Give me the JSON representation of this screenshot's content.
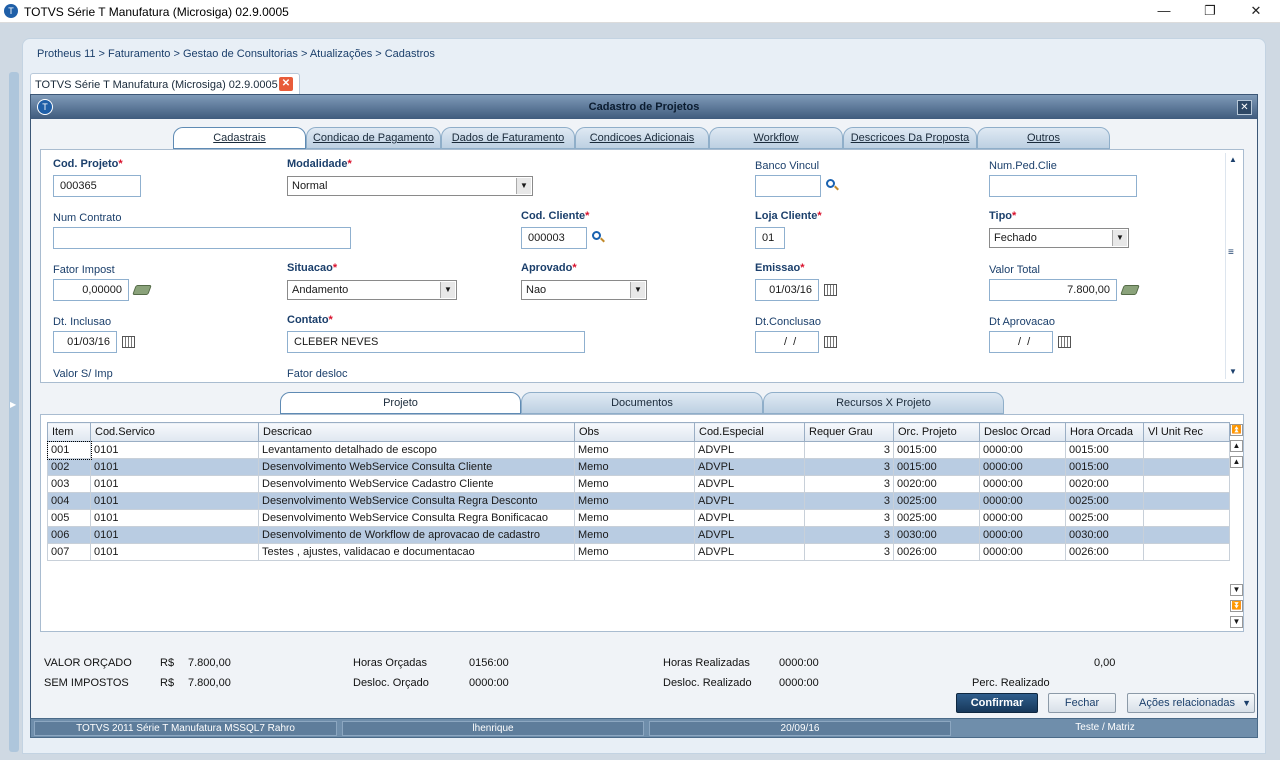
{
  "window": {
    "title": "TOTVS Série T Manufatura (Microsiga) 02.9.0005",
    "minimize": "—",
    "maximize": "❐",
    "close": "✕"
  },
  "breadcrumb": "Protheus 11 > Faturamento > Gestao de Consultorias > Atualizações > Cadastros",
  "doc_tab": {
    "label": "TOTVS Série T Manufatura (Microsiga) 02.9.0005",
    "close": "✕"
  },
  "dialog": {
    "title": "Cadastro de Projetos",
    "close": "✕"
  },
  "tabs": [
    "Cadastrais",
    "Condicao de Pagamento",
    "Dados de Faturamento",
    "Condicoes Adicionais",
    "Workflow",
    "Descricoes Da Proposta",
    "Outros"
  ],
  "form": {
    "cod_projeto": {
      "label": "Cod. Projeto",
      "value": "000365"
    },
    "modalidade": {
      "label": "Modalidade",
      "value": "Normal"
    },
    "banco_vincul": {
      "label": "Banco Vincul",
      "value": ""
    },
    "num_ped_clie": {
      "label": "Num.Ped.Clie",
      "value": ""
    },
    "num_contrato": {
      "label": "Num Contrato",
      "value": ""
    },
    "cod_cliente": {
      "label": "Cod. Cliente",
      "value": "000003"
    },
    "loja_cliente": {
      "label": "Loja Cliente",
      "value": "01"
    },
    "tipo": {
      "label": "Tipo",
      "value": "Fechado"
    },
    "fator_impost": {
      "label": "Fator Impost",
      "value": "0,00000"
    },
    "situacao": {
      "label": "Situacao",
      "value": "Andamento"
    },
    "aprovado": {
      "label": "Aprovado",
      "value": "Nao"
    },
    "emissao": {
      "label": "Emissao",
      "value": "01/03/16"
    },
    "valor_total": {
      "label": "Valor Total",
      "value": "7.800,00"
    },
    "dt_inclusao": {
      "label": "Dt. Inclusao",
      "value": "01/03/16"
    },
    "contato": {
      "label": "Contato",
      "value": "CLEBER NEVES"
    },
    "dt_conclusao": {
      "label": "Dt.Conclusao",
      "value": "  /  /"
    },
    "dt_aprovacao": {
      "label": "Dt Aprovacao",
      "value": "  /  /"
    },
    "valor_s_imp": {
      "label": "Valor S/ Imp"
    },
    "fator_desloc": {
      "label": "Fator desloc"
    },
    "required_mark": "*"
  },
  "sub_tabs": [
    "Projeto",
    "Documentos",
    "Recursos X Projeto"
  ],
  "grid": {
    "columns": [
      "Item",
      "Cod.Servico",
      "Descricao",
      "Obs",
      "Cod.Especial",
      "Requer Grau",
      "Orc. Projeto",
      "Desloc Orcad",
      "Hora Orcada",
      "Vl Unit Rec"
    ],
    "rows": [
      [
        "001",
        "0101",
        "Levantamento detalhado de escopo",
        "Memo",
        "ADVPL",
        "3",
        "0015:00",
        "0000:00",
        "0015:00",
        ""
      ],
      [
        "002",
        "0101",
        "Desenvolvimento WebService Consulta Cliente",
        "Memo",
        "ADVPL",
        "3",
        "0015:00",
        "0000:00",
        "0015:00",
        ""
      ],
      [
        "003",
        "0101",
        "Desenvolvimento WebService Cadastro Cliente",
        "Memo",
        "ADVPL",
        "3",
        "0020:00",
        "0000:00",
        "0020:00",
        ""
      ],
      [
        "004",
        "0101",
        "Desenvolvimento WebService Consulta Regra Desconto",
        "Memo",
        "ADVPL",
        "3",
        "0025:00",
        "0000:00",
        "0025:00",
        ""
      ],
      [
        "005",
        "0101",
        "Desenvolvimento WebService Consulta Regra Bonificacao",
        "Memo",
        "ADVPL",
        "3",
        "0025:00",
        "0000:00",
        "0025:00",
        ""
      ],
      [
        "006",
        "0101",
        "Desenvolvimento de Workflow de aprovacao de cadastro",
        "Memo",
        "ADVPL",
        "3",
        "0030:00",
        "0000:00",
        "0030:00",
        ""
      ],
      [
        "007",
        "0101",
        "Testes , ajustes, validacao e documentacao",
        "Memo",
        "ADVPL",
        "3",
        "0026:00",
        "0000:00",
        "0026:00",
        ""
      ]
    ]
  },
  "footer": {
    "valor_orcado_label": "VALOR ORÇADO",
    "valor_orcado_cur": "R$",
    "valor_orcado": "7.800,00",
    "sem_impostos_label": "SEM IMPOSTOS",
    "sem_impostos_cur": "R$",
    "sem_impostos": "7.800,00",
    "horas_orcadas_label": "Horas Orçadas",
    "horas_orcadas": "0156:00",
    "desloc_orcado_label": "Desloc. Orçado",
    "desloc_orcado": "0000:00",
    "horas_realizadas_label": "Horas Realizadas",
    "horas_realizadas": "0000:00",
    "desloc_realizado_label": "Desloc. Realizado",
    "desloc_realizado": "0000:00",
    "perc_value": "0,00",
    "perc_label": "Perc. Realizado"
  },
  "buttons": {
    "confirmar": "Confirmar",
    "fechar": "Fechar",
    "acoes": "Ações relacionadas"
  },
  "status": [
    "TOTVS 2011 Série T Manufatura MSSQL7 Rahro",
    "lhenrique",
    "20/09/16",
    "Teste / Matriz"
  ]
}
